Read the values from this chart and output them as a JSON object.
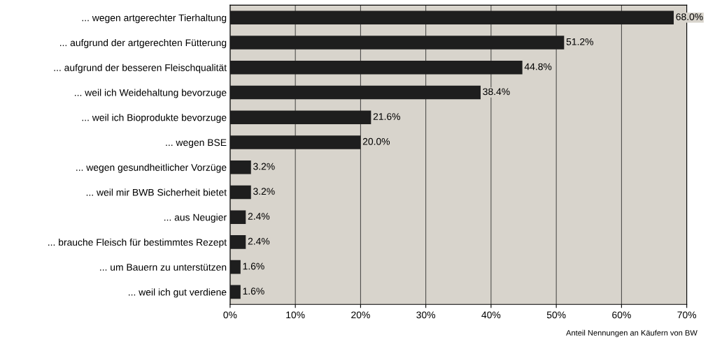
{
  "chart_data": {
    "type": "bar",
    "orientation": "horizontal",
    "categories": [
      "... wegen artgerechter Tierhaltung",
      "... aufgrund der artgerechten Fütterung",
      "... aufgrund der besseren Fleischqualität",
      "... weil ich Weidehaltung bevorzuge",
      "... weil ich Bioprodukte bevorzuge",
      "... wegen BSE",
      "... wegen gesundheitlicher Vorzüge",
      "... weil mir BWB Sicherheit bietet",
      "... aus Neugier",
      "... brauche Fleisch für bestimmtes Rezept",
      "... um Bauern zu unterstützen",
      "... weil ich gut verdiene"
    ],
    "values": [
      68.0,
      51.2,
      44.8,
      38.4,
      21.6,
      20.0,
      3.2,
      3.2,
      2.4,
      2.4,
      1.6,
      1.6
    ],
    "value_labels": [
      "68.0%",
      "51.2%",
      "44.8%",
      "38.4%",
      "21.6%",
      "20.0%",
      "3.2%",
      "3.2%",
      "2.4%",
      "2.4%",
      "1.6%",
      "1.6%"
    ],
    "color": "#1e1e1e",
    "xlim": [
      0,
      70
    ],
    "xticks": [
      {
        "value": 0,
        "label": "0%"
      },
      {
        "value": 10,
        "label": "10%"
      },
      {
        "value": 20,
        "label": "20%"
      },
      {
        "value": 30,
        "label": "30%"
      },
      {
        "value": 40,
        "label": "40%"
      },
      {
        "value": 50,
        "label": "50%"
      },
      {
        "value": 60,
        "label": "60%"
      },
      {
        "value": 70,
        "label": "70%"
      }
    ],
    "grid": "x",
    "annotations": [
      "Anteil Nennungen an Käufern von BW"
    ]
  }
}
